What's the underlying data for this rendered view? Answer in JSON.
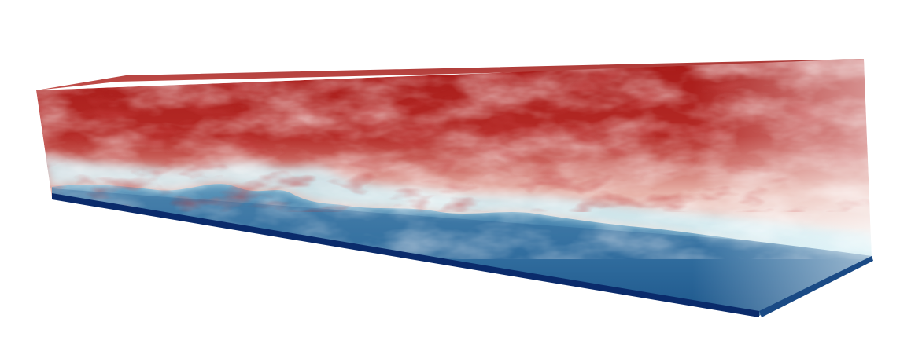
{
  "scene": {
    "subject": "volume-rendering",
    "colormap": {
      "name": "cool-to-warm",
      "stops": [
        "#08306b",
        "#2a6f9e",
        "#4d8bb3",
        "#a8dbe8",
        "#f6d9d2",
        "#e5a396",
        "#c0473e",
        "#a91d1a",
        "#8e1212"
      ]
    },
    "upper_color": "#b21e1c",
    "mixing_color": "#f2e0dc",
    "interface_color": "#b7e3ef",
    "lower_color": "#3f80ac",
    "bottom_edge_color": "#0a2b6b",
    "background_color": "#ffffff"
  }
}
